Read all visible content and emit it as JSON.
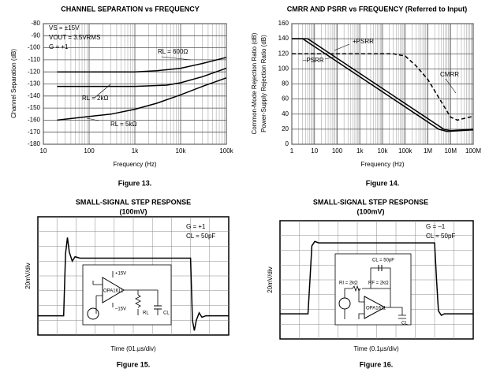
{
  "chart_data": [
    {
      "type": "line",
      "title": "CHANNEL SEPARATION vs FREQUENCY",
      "xlabel": "Frequency (Hz)",
      "ylabel": "Channel Separation (dB)",
      "caption": "Figure 13.",
      "xscale": "log",
      "xlim": [
        10,
        100000
      ],
      "xticks": [
        10,
        100,
        {
          "value": 1000,
          "label": "1k"
        },
        {
          "value": 10000,
          "label": "10k"
        },
        {
          "value": 100000,
          "label": "100k"
        }
      ],
      "ylim": [
        -180,
        -80
      ],
      "yticks": [
        -80,
        -90,
        -100,
        -110,
        -120,
        -130,
        -140,
        -150,
        -160,
        -170,
        -180
      ],
      "grid": true,
      "annotations": [
        "VS = ±15V",
        "VOUT = 3.5VRMS",
        "G = +1"
      ],
      "series": [
        {
          "name": "RL = 600Ω",
          "color": "#000000",
          "x": [
            20,
            100,
            1000,
            3000,
            10000,
            30000,
            100000
          ],
          "values": [
            -120,
            -120,
            -120,
            -119,
            -117,
            -113,
            -108
          ]
        },
        {
          "name": "RL = 2kΩ",
          "color": "#000000",
          "x": [
            20,
            100,
            1000,
            5000,
            10000,
            30000,
            100000
          ],
          "values": [
            -132,
            -132,
            -132,
            -131,
            -129,
            -124,
            -117
          ]
        },
        {
          "name": "RL = 5kΩ",
          "color": "#000000",
          "x": [
            20,
            100,
            300,
            1000,
            3000,
            10000,
            30000,
            100000
          ],
          "values": [
            -160,
            -157,
            -155,
            -151,
            -146,
            -139,
            -132,
            -125
          ]
        }
      ]
    },
    {
      "type": "line",
      "title": "CMRR AND PSRR vs FREQUENCY (Referred to Input)",
      "xlabel": "Frequency (Hz)",
      "ylabel": [
        "Common-Mode Rejection Ratio (dB)",
        "Power-Supply Rejection Ratio (dB)"
      ],
      "caption": "Figure 14.",
      "xscale": "log",
      "xlim": [
        1,
        100000000
      ],
      "xticks": [
        1,
        10,
        100,
        {
          "value": 1000,
          "label": "1k"
        },
        {
          "value": 10000,
          "label": "10k"
        },
        {
          "value": 100000,
          "label": "100k"
        },
        {
          "value": 1000000,
          "label": "1M"
        },
        {
          "value": 10000000,
          "label": "10M"
        },
        {
          "value": 100000000,
          "label": "100M"
        }
      ],
      "ylim": [
        0,
        160
      ],
      "yticks": [
        0,
        20,
        40,
        60,
        80,
        100,
        120,
        140,
        160
      ],
      "grid": true,
      "series": [
        {
          "name": "CMRR",
          "color": "#000000",
          "dash": true,
          "x": [
            1,
            30000,
            100000,
            300000,
            1000000,
            3000000,
            10000000,
            20000000,
            50000000,
            100000000
          ],
          "values": [
            120,
            120,
            117,
            104,
            86,
            62,
            36,
            32,
            35,
            37
          ]
        },
        {
          "name": "+PSRR",
          "color": "#000000",
          "x": [
            1,
            5,
            5000000,
            10000000,
            100000000
          ],
          "values": [
            140,
            140,
            20,
            18,
            20
          ]
        },
        {
          "name": "–PSRR",
          "color": "#000000",
          "x": [
            1,
            3,
            3000000,
            7000000,
            100000000
          ],
          "values": [
            140,
            140,
            20,
            17,
            19
          ]
        }
      ]
    },
    {
      "type": "line",
      "title": "SMALL-SIGNAL STEP RESPONSE",
      "subtitle": "(100mV)",
      "xlabel": "Time (01.µs/div)",
      "ylabel": "20mV/div",
      "caption": "Figure 15.",
      "xlim": [
        0,
        10
      ],
      "ylim": [
        0,
        8
      ],
      "annotations": [
        "G = +1",
        "CL = 50pF"
      ],
      "circuit_labels": [
        "+15V",
        "–15V",
        "OPA1611",
        "RL",
        "CL"
      ],
      "series": [
        {
          "color": "#000000",
          "x": [
            0,
            1.35,
            1.45,
            1.55,
            1.65,
            1.8,
            1.95,
            2.2,
            8.0,
            8.1,
            8.2,
            8.3,
            8.45,
            8.6,
            8.8,
            10
          ],
          "values": [
            1.3,
            1.3,
            5.5,
            6.6,
            5.6,
            5.0,
            5.3,
            5.2,
            5.2,
            1.0,
            0.3,
            1.0,
            1.5,
            1.2,
            1.3,
            1.3
          ]
        }
      ]
    },
    {
      "type": "line",
      "title": "SMALL-SIGNAL STEP RESPONSE",
      "subtitle": "(100mV)",
      "xlabel": "Time (0.1µs/div)",
      "ylabel": "20mV/div",
      "caption": "Figure 16.",
      "xlim": [
        0,
        10
      ],
      "ylim": [
        0,
        8
      ],
      "annotations": [
        "G = –1",
        "CL = 50pF"
      ],
      "circuit_labels": [
        "CL = 50pF",
        "RI = 2kΩ",
        "RF = 2kΩ",
        "OPA1611",
        "CL"
      ],
      "series": [
        {
          "color": "#000000",
          "x": [
            0,
            1.45,
            1.55,
            1.65,
            1.8,
            2.0,
            8.0,
            8.1,
            8.2,
            8.35,
            8.5,
            10
          ],
          "values": [
            1.7,
            1.7,
            4.0,
            6.3,
            6.6,
            6.5,
            6.5,
            4.0,
            1.9,
            1.6,
            1.7,
            1.7
          ]
        }
      ]
    }
  ]
}
